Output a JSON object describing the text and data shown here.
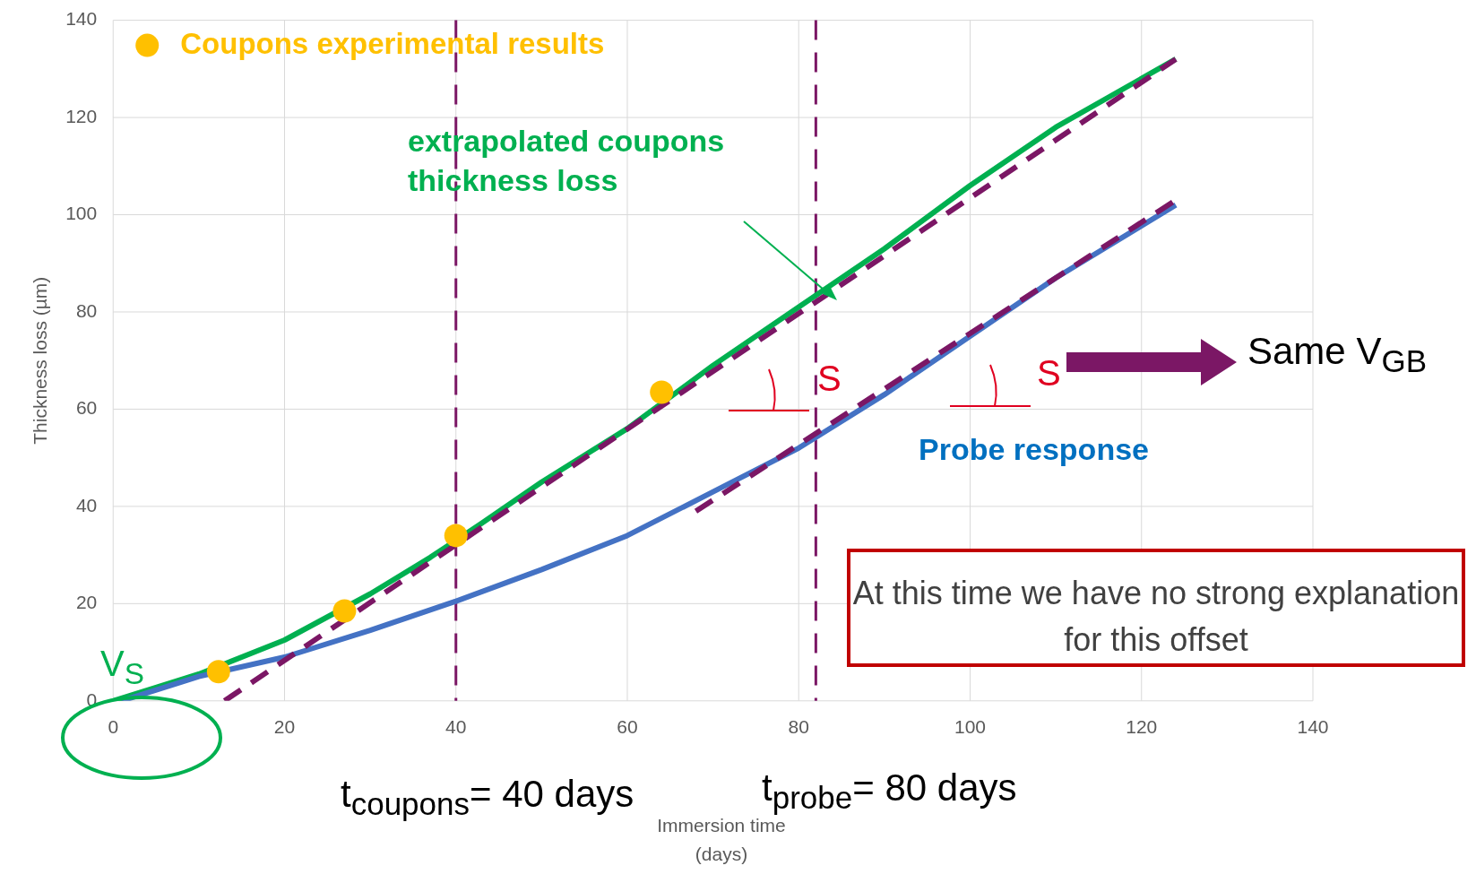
{
  "chart_data": {
    "type": "line",
    "xlabel": "Immersion time (days)",
    "ylabel": "Thickness loss (µm)",
    "xlim": [
      0,
      140
    ],
    "xticks": [
      0,
      20,
      40,
      60,
      80,
      100,
      120,
      140
    ],
    "ylim": [
      0,
      140
    ],
    "yticks": [
      0,
      20,
      40,
      60,
      80,
      100,
      120,
      140
    ],
    "grid": true,
    "legend": "top left",
    "series": [
      {
        "name": "Coupons experimental results",
        "type": "scatter",
        "marker": "circle",
        "color": "#ffc000",
        "x": [
          12.3,
          27,
          40,
          64
        ],
        "values": [
          6,
          18.5,
          34,
          63.5
        ]
      },
      {
        "color": "#00b050",
        "x": [
          0,
          10,
          20,
          30,
          37,
          43,
          50,
          60,
          70,
          80,
          90,
          100,
          110,
          124
        ],
        "values": [
          0,
          5.5,
          12.5,
          22,
          29.5,
          36.5,
          45,
          56,
          69,
          81,
          93,
          106,
          118,
          132
        ]
      },
      {
        "color": "#4472c4",
        "x": [
          1,
          10,
          20,
          30,
          40,
          50,
          60,
          70,
          80,
          90,
          100,
          110,
          124
        ],
        "values": [
          0,
          5,
          9,
          14.5,
          20.5,
          27,
          34,
          43,
          52,
          63,
          75,
          87,
          102
        ]
      },
      {
        "type": "line",
        "color": "#7b1765",
        "line_style": "dashed",
        "x": [
          13,
          124
        ],
        "values": [
          0,
          132
        ]
      },
      {
        "type": "line",
        "color": "#7b1765",
        "line_style": "dashed",
        "x": [
          68,
          124
        ],
        "values": [
          39,
          103
        ]
      }
    ],
    "ref_lines": [
      {
        "axis": "x",
        "value": 40,
        "color": "#7b1765",
        "line_style": "dashed"
      },
      {
        "axis": "x",
        "value": 82,
        "color": "#7b1765",
        "line_style": "dashed"
      }
    ],
    "annotations": [
      "extrapolated coupons thickness loss",
      "Probe response",
      "S",
      "S",
      "Same V$_{GB}$",
      "V$_{S}$",
      "t$_{coupons}$= 40 days",
      "t$_{probe}$= 80 days",
      "At this time we have no strong explanation for this offset"
    ]
  }
}
